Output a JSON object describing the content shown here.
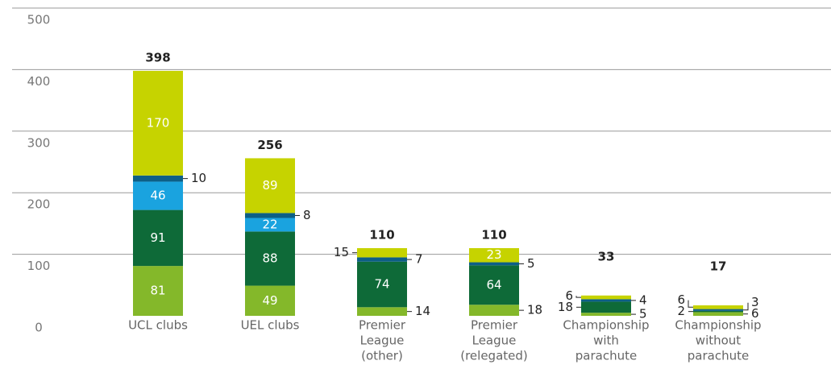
{
  "chart_data": {
    "type": "stacked-bar",
    "categories": [
      [
        "UCL clubs"
      ],
      [
        "UEL clubs"
      ],
      [
        "Premier",
        "League",
        "(other)"
      ],
      [
        "Premier",
        "League",
        "(relegated)"
      ],
      [
        "Championship",
        "with",
        "parachute"
      ],
      [
        "Championship",
        "without",
        "parachute"
      ]
    ],
    "series": [
      {
        "color": "#84b82a",
        "values": [
          81,
          49,
          14,
          18,
          5,
          6
        ]
      },
      {
        "color": "#0e6a38",
        "values": [
          91,
          88,
          74,
          64,
          18,
          2
        ]
      },
      {
        "color": "#1aa3df",
        "values": [
          46,
          22,
          null,
          null,
          null,
          null
        ]
      },
      {
        "color": "#0d5f86",
        "values": [
          10,
          8,
          7,
          5,
          4,
          3
        ]
      },
      {
        "color": "#c6d300",
        "values": [
          170,
          89,
          15,
          23,
          6,
          6
        ]
      }
    ],
    "totals": [
      398,
      256,
      110,
      110,
      33,
      17
    ],
    "ylim": [
      0,
      500
    ],
    "yticks": [
      0,
      100,
      200,
      300,
      400,
      500
    ],
    "grid": true
  }
}
